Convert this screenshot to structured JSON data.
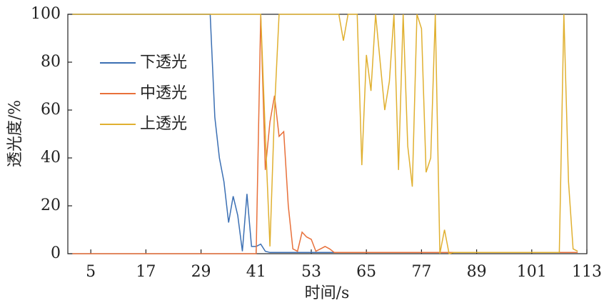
{
  "chart_data": {
    "type": "line",
    "x_label": "时间/s",
    "y_label": "透光度/%",
    "x": [
      1,
      2,
      3,
      4,
      5,
      6,
      7,
      8,
      9,
      10,
      11,
      12,
      13,
      14,
      15,
      16,
      17,
      18,
      19,
      20,
      21,
      22,
      23,
      24,
      25,
      26,
      27,
      28,
      29,
      30,
      31,
      32,
      33,
      34,
      35,
      36,
      37,
      38,
      39,
      40,
      41,
      42,
      43,
      44,
      45,
      46,
      47,
      48,
      49,
      50,
      51,
      52,
      53,
      54,
      55,
      56,
      57,
      58,
      59,
      60,
      61,
      62,
      63,
      64,
      65,
      66,
      67,
      68,
      69,
      70,
      71,
      72,
      73,
      74,
      75,
      76,
      77,
      78,
      79,
      80,
      81,
      82,
      83,
      84,
      85,
      86,
      87,
      88,
      89,
      90,
      91,
      92,
      93,
      94,
      95,
      96,
      97,
      98,
      99,
      100,
      101,
      102,
      103,
      104,
      105,
      106,
      107,
      108,
      109,
      110,
      111
    ],
    "series": [
      {
        "name": "下透光",
        "color": "#3b6fb3",
        "values": [
          100,
          100,
          100,
          100,
          100,
          100,
          100,
          100,
          100,
          100,
          100,
          100,
          100,
          100,
          100,
          100,
          100,
          100,
          100,
          100,
          100,
          100,
          100,
          100,
          100,
          100,
          100,
          100,
          100,
          100,
          100,
          57,
          40,
          30,
          13,
          24,
          16,
          1,
          25,
          3,
          3,
          4,
          1,
          0.5,
          0.5,
          0.5,
          0.5,
          0.5,
          0.5,
          0.5,
          0.5,
          0.5,
          0.5,
          0.5,
          0.5,
          0.5,
          0.5,
          0.5,
          0.5,
          0.5,
          0.5,
          0.5,
          0.5,
          0.5,
          0.5,
          0.5,
          0.5,
          0.5,
          0.5,
          0.5,
          0.5,
          0.5,
          0.5,
          0.5,
          0.5,
          0.5,
          0.5,
          0.5,
          0.5,
          0.5,
          0.5,
          0.5,
          0.5,
          0.5,
          0.5,
          0.5,
          0.5,
          0.5,
          0.5,
          0.5,
          0.5,
          0.5,
          0.5,
          0.5,
          0.5,
          0.5,
          0.5,
          0.5,
          0.5,
          0.5,
          0.5,
          0.5,
          0.5,
          0.5,
          0.5,
          0.5,
          0.5,
          0.5,
          0.5,
          0.5,
          0.5
        ]
      },
      {
        "name": "中透光",
        "color": "#e8703a",
        "values": [
          0,
          0,
          0,
          0,
          0,
          0,
          0,
          0,
          0,
          0,
          0,
          0,
          0,
          0,
          0,
          0,
          0,
          0,
          0,
          0,
          0,
          0,
          0,
          0,
          0,
          0,
          0,
          0,
          0,
          0,
          0,
          0,
          0,
          0,
          0,
          0,
          0,
          0,
          0,
          0,
          0,
          100,
          35,
          55,
          66,
          49,
          51,
          20,
          2,
          1,
          9,
          7,
          6,
          1,
          2,
          3,
          2,
          0.5,
          0.5,
          0.5,
          0.5,
          0.5,
          0.5,
          0.5,
          0.5,
          0.5,
          0.5,
          0.5,
          0.5,
          0.5,
          0.5,
          0.5,
          0.5,
          0.5,
          0.5,
          0.5,
          0.5,
          0.5,
          0.5,
          0.5,
          0.5,
          0.5,
          0.5,
          0.5,
          0.5,
          0.5,
          0.5,
          0.5,
          0.5,
          0.5,
          0.5,
          0.5,
          0.5,
          0.5,
          0.5,
          0.5,
          0.5,
          0.5,
          0.5,
          0.5,
          0.5,
          0.5,
          0.5,
          0.5,
          0.5,
          0.5,
          0.5,
          0.5,
          0.5,
          0.5,
          0.5
        ]
      },
      {
        "name": "上透光",
        "color": "#e0b030",
        "values": [
          100,
          100,
          100,
          100,
          100,
          100,
          100,
          100,
          100,
          100,
          100,
          100,
          100,
          100,
          100,
          100,
          100,
          100,
          100,
          100,
          100,
          100,
          100,
          100,
          100,
          100,
          100,
          100,
          100,
          100,
          100,
          100,
          100,
          100,
          100,
          100,
          100,
          100,
          100,
          100,
          100,
          100,
          50,
          3,
          60,
          100,
          100,
          100,
          100,
          100,
          100,
          100,
          100,
          100,
          100,
          100,
          100,
          100,
          100,
          89,
          100,
          100,
          100,
          37,
          83,
          68,
          100,
          80,
          60,
          72,
          100,
          35,
          100,
          45,
          28,
          100,
          94,
          34,
          40,
          100,
          0,
          10,
          0,
          0.5,
          0.5,
          0.5,
          0.5,
          0.5,
          0.5,
          0.5,
          0.5,
          0.5,
          0.5,
          0.5,
          0.5,
          0.5,
          0.5,
          0.5,
          0.5,
          0.5,
          0.5,
          0.5,
          0.5,
          0.5,
          0.5,
          0.5,
          0.5,
          100,
          30,
          2,
          1
        ]
      }
    ],
    "xlim": [
      0,
      113
    ],
    "xticks": [
      5,
      17,
      29,
      41,
      53,
      65,
      77,
      89,
      101,
      113
    ],
    "ylim": [
      0,
      100
    ],
    "yticks": [
      0,
      20,
      40,
      60,
      80,
      100
    ],
    "legend": "left"
  }
}
